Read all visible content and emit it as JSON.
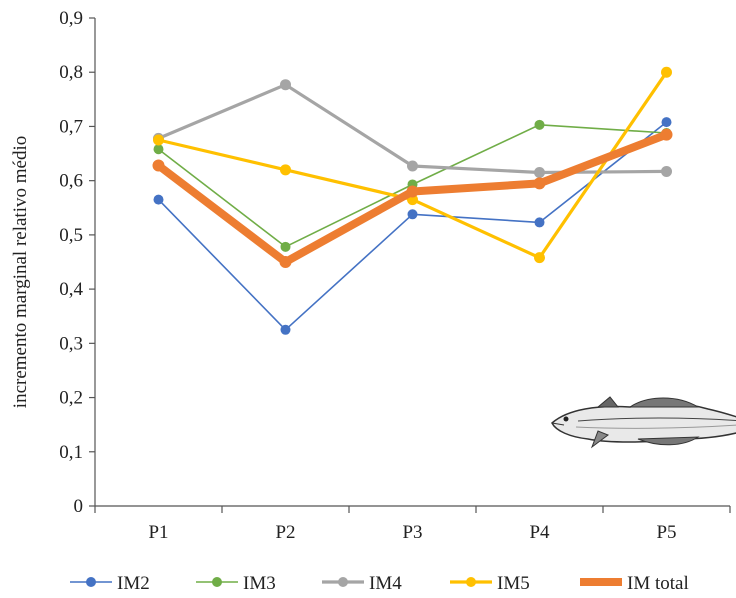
{
  "chart_data": {
    "type": "line",
    "categories": [
      "P1",
      "P2",
      "P3",
      "P4",
      "P5"
    ],
    "ylabel": "incremento marginal relativo médio",
    "ylim": [
      0,
      0.9
    ],
    "yticks": [
      "0",
      "0,1",
      "0,2",
      "0,3",
      "0,4",
      "0,5",
      "0,6",
      "0,7",
      "0,8",
      "0,9"
    ],
    "grid": false,
    "legend": "bottom",
    "series": [
      {
        "name": "IM2",
        "color": "#4472c4",
        "width": "thin",
        "values": [
          0.565,
          0.325,
          0.538,
          0.523,
          0.708
        ]
      },
      {
        "name": "IM3",
        "color": "#70ad47",
        "width": "thin",
        "values": [
          0.658,
          0.478,
          0.593,
          0.703,
          0.688
        ]
      },
      {
        "name": "IM4",
        "color": "#a5a5a5",
        "width": "medium",
        "values": [
          0.678,
          0.777,
          0.627,
          0.615,
          0.617
        ]
      },
      {
        "name": "IM5",
        "color": "#ffc000",
        "width": "medium",
        "values": [
          0.675,
          0.62,
          0.565,
          0.458,
          0.8
        ]
      },
      {
        "name": "IM total",
        "color": "#ed7d31",
        "width": "thick",
        "values": [
          0.628,
          0.45,
          0.58,
          0.595,
          0.685
        ]
      }
    ],
    "decoration": "fish-illustration"
  }
}
